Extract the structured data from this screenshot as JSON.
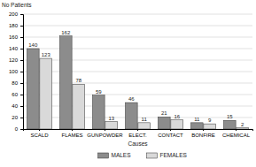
{
  "chart_data": {
    "type": "bar",
    "y_label": "No Patients",
    "x_label": "Causes",
    "categories": [
      "SCALD",
      "FLAMES",
      "GUNPOWDER",
      "ELECT.",
      "CONTACT",
      "BONFIRE",
      "CHEMICAL"
    ],
    "series": [
      {
        "name": "MALES",
        "color": "#8c8c8c",
        "values": [
          140,
          162,
          59,
          46,
          21,
          11,
          15
        ]
      },
      {
        "name": "FEMALES",
        "color": "#d9d9d9",
        "values": [
          123,
          78,
          13,
          11,
          16,
          9,
          2
        ]
      }
    ],
    "ylim": [
      0,
      200
    ],
    "yticks": [
      0,
      20,
      40,
      60,
      80,
      100,
      120,
      140,
      160,
      180,
      200
    ],
    "grid": true,
    "data_labels": true,
    "legend": "bottom"
  }
}
